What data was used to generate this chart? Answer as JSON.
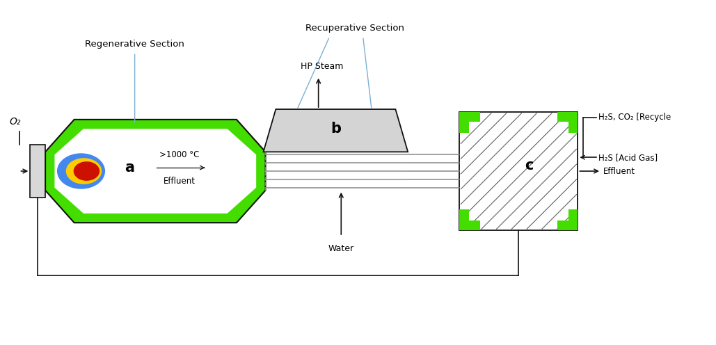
{
  "bg_color": "#ffffff",
  "green_color": "#44dd00",
  "gray_color": "#999999",
  "light_gray": "#c8c8c8",
  "dark_color": "#111111",
  "blue_annotation": "#7ab0d4",
  "label_a": "a",
  "label_b": "b",
  "label_c": "c",
  "text_regen": "Regenerative Section",
  "text_recup": "Recuperative Section",
  "text_hp_steam": "HP Steam",
  "text_water": "Water",
  "text_o2": "O₂",
  "text_effluent": "Effluent",
  "text_h2s_co2": "H₂S, CO₂ [Recycle",
  "text_h2s": "H₂S [Acid Gas]",
  "text_temp": ">1000 °C",
  "text_effluent_inner": "Effluent"
}
